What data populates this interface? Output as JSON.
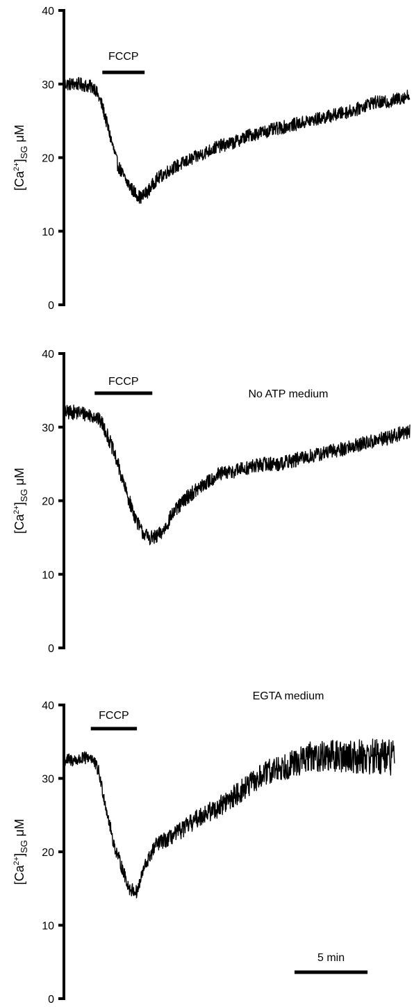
{
  "chart_data": [
    {
      "type": "line",
      "ylabel": {
        "prefix": "[Ca",
        "sup": "2+",
        "bracket": "]",
        "sub": "SG",
        "unit": " μM"
      },
      "yticks": [
        0,
        10,
        20,
        30,
        40
      ],
      "ylim": [
        0,
        40
      ],
      "xlim": [
        0,
        45
      ],
      "annotation": "",
      "bar": {
        "label": "FCCP",
        "start": 5,
        "end": 10.5
      },
      "series": [
        {
          "x": [
            0,
            2,
            4,
            5,
            6,
            7,
            8,
            9,
            10,
            11,
            12,
            14,
            16,
            18,
            20,
            22,
            24,
            26,
            28,
            30,
            32,
            34,
            36,
            38,
            40,
            42,
            45
          ],
          "values": [
            30,
            30,
            29.5,
            27,
            23,
            19,
            17,
            15.5,
            14.5,
            15.5,
            17,
            18.5,
            19.5,
            20.5,
            21.5,
            22,
            23,
            23.5,
            24,
            24.5,
            25,
            25.5,
            26,
            26.5,
            27.5,
            27.5,
            28.5
          ],
          "noise": 0.9
        }
      ]
    },
    {
      "type": "line",
      "ylabel": {
        "prefix": "[Ca",
        "sup": "2+",
        "bracket": "]",
        "sub": "SG",
        "unit": " μM"
      },
      "yticks": [
        0,
        10,
        20,
        30,
        40
      ],
      "ylim": [
        0,
        40
      ],
      "xlim": [
        0,
        45
      ],
      "annotation": "No ATP medium",
      "bar": {
        "label": "FCCP",
        "start": 4,
        "end": 11.5
      },
      "series": [
        {
          "x": [
            0,
            2,
            4,
            5,
            6,
            7,
            8,
            9,
            10,
            11,
            12,
            13,
            14,
            16,
            18,
            20,
            22,
            24,
            26,
            28,
            30,
            32,
            34,
            36,
            38,
            40,
            42,
            45
          ],
          "values": [
            32,
            32,
            31.5,
            30.5,
            28,
            25,
            21.5,
            18.5,
            16,
            15,
            15,
            16,
            18,
            20.5,
            22,
            23.5,
            24,
            24.5,
            25,
            25,
            25.5,
            26,
            26.5,
            27,
            27.5,
            28,
            28.5,
            29.5
          ],
          "noise": 1.0
        }
      ]
    },
    {
      "type": "line",
      "ylabel": {
        "prefix": "[Ca",
        "sup": "2+",
        "bracket": "]",
        "sub": "SG",
        "unit": " μM"
      },
      "yticks": [
        0,
        10,
        20,
        30,
        40
      ],
      "ylim": [
        0,
        40
      ],
      "xlim": [
        0,
        45
      ],
      "annotation": "EGTA medium",
      "bar": {
        "label": "FCCP",
        "start": 3.5,
        "end": 9.5
      },
      "scalebar": {
        "label": "5 min",
        "start": 30,
        "end": 39.5
      },
      "series": [
        {
          "x": [
            0,
            2,
            3.5,
            4.5,
            5.5,
            6.5,
            7.5,
            8.5,
            9.5,
            10.5,
            12,
            14,
            16,
            18,
            20,
            22,
            24,
            26,
            28,
            30,
            32,
            34,
            36,
            38,
            40,
            42,
            43
          ],
          "values": [
            32.5,
            32.5,
            33,
            31,
            26,
            21,
            18,
            15,
            14.5,
            18,
            21,
            22,
            23.5,
            25,
            26,
            27.5,
            29,
            30.5,
            31.5,
            32,
            33,
            33,
            33,
            33,
            33,
            33,
            33
          ],
          "noise_start": 0.9,
          "noise_end": 2.6
        }
      ]
    }
  ]
}
